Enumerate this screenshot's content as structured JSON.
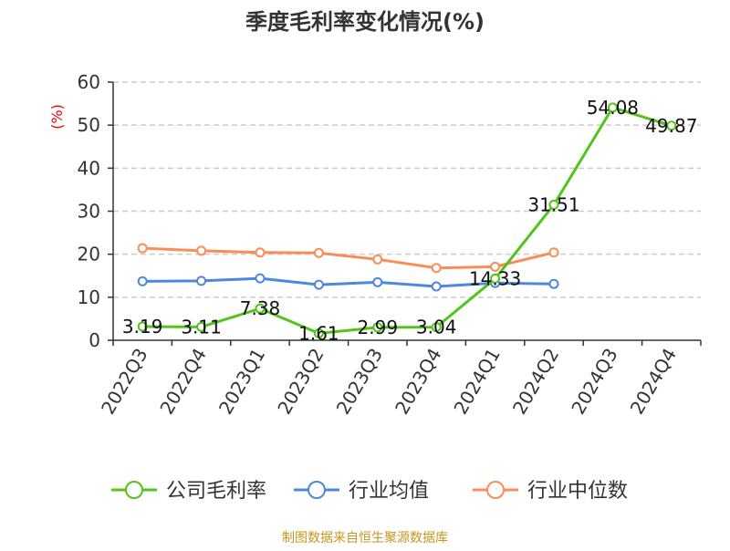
{
  "chart_data": {
    "type": "line",
    "title": "季度毛利率变化情况(%)",
    "ylabel": "(%)",
    "xlabel": "",
    "ylim": [
      0,
      60
    ],
    "yticks": [
      "0",
      "10",
      "20",
      "30",
      "40",
      "50",
      "60"
    ],
    "grid": true,
    "legend_position": "bottom",
    "categories": [
      "2022Q3",
      "2022Q4",
      "2023Q1",
      "2023Q2",
      "2023Q3",
      "2023Q4",
      "2024Q1",
      "2024Q2",
      "2024Q3",
      "2024Q4"
    ],
    "series": [
      {
        "name": "公司毛利率",
        "color": "#52c41a",
        "values": [
          3.19,
          3.11,
          7.38,
          1.61,
          2.99,
          3.04,
          14.33,
          31.51,
          54.08,
          49.87
        ],
        "labels": [
          "3.19",
          "3.11",
          "7.38",
          "1.61",
          "2.99",
          "3.04",
          "14.33",
          "31.51",
          "54.08",
          "49.87"
        ]
      },
      {
        "name": "行业均值",
        "color": "#4f86e0",
        "values": [
          13.7,
          13.8,
          14.4,
          12.9,
          13.5,
          12.5,
          13.3,
          13.1,
          null,
          null
        ]
      },
      {
        "name": "行业中位数",
        "color": "#fb8c58",
        "values": [
          21.4,
          20.8,
          20.4,
          20.3,
          18.8,
          16.8,
          17.1,
          20.4,
          null,
          null
        ]
      }
    ]
  },
  "source": "制图数据来自恒生聚源数据库"
}
